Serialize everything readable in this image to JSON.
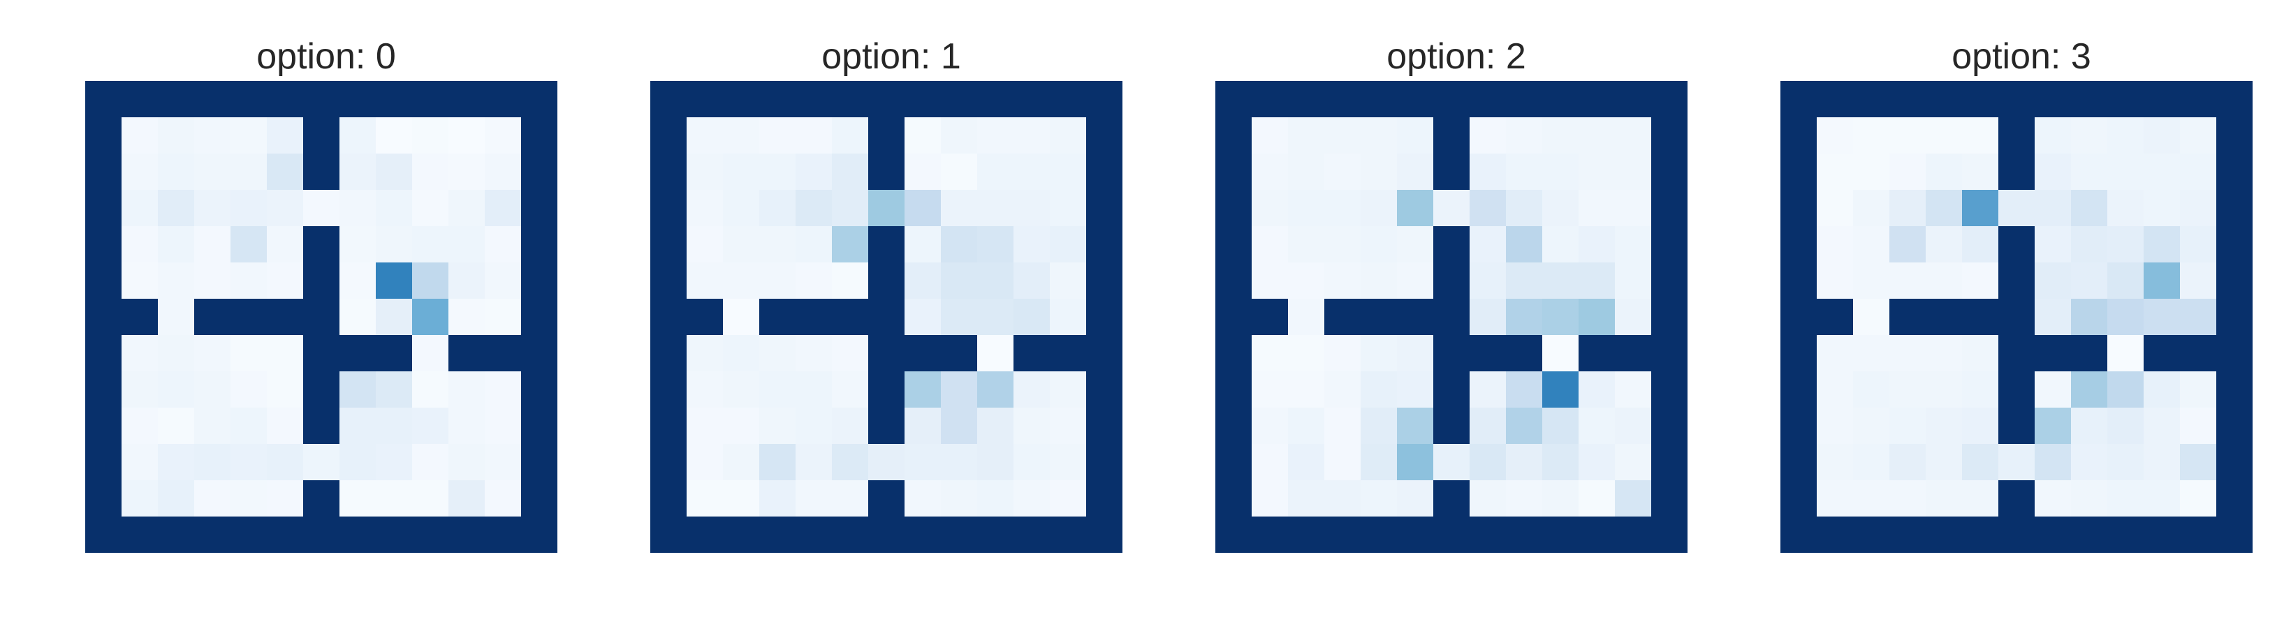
{
  "colors": {
    "wall": "#08306b",
    "cmap_low": "#f7fbff",
    "cmap_mid": "#6baed6",
    "cmap_high": "#08306b"
  },
  "chart_data": [
    {
      "type": "heatmap",
      "title": "option: 0",
      "rows": 13,
      "cols": 13,
      "vmax": 1.0,
      "values": [
        [
          -1,
          -1,
          -1,
          -1,
          -1,
          -1,
          -1,
          -1,
          -1,
          -1,
          -1,
          -1,
          -1
        ],
        [
          -1,
          0.04,
          0.08,
          0.06,
          0.05,
          0.14,
          -1,
          0.1,
          0.0,
          0.02,
          0.0,
          0.03,
          -1
        ],
        [
          -1,
          0.06,
          0.1,
          0.08,
          0.08,
          0.28,
          -1,
          0.12,
          0.18,
          0.04,
          0.03,
          0.06,
          -1
        ],
        [
          -1,
          0.1,
          0.22,
          0.12,
          0.14,
          0.12,
          0.04,
          0.06,
          0.1,
          0.03,
          0.08,
          0.2,
          -1
        ],
        [
          -1,
          0.04,
          0.1,
          0.04,
          0.3,
          0.06,
          -1,
          0.05,
          0.08,
          0.1,
          0.1,
          0.04,
          -1
        ],
        [
          -1,
          0.03,
          0.06,
          0.04,
          0.06,
          0.04,
          -1,
          0.03,
          0.85,
          0.42,
          0.12,
          0.06,
          -1
        ],
        [
          -1,
          -1,
          0.06,
          -1,
          -1,
          -1,
          -1,
          0.02,
          0.18,
          0.7,
          0.03,
          0.02,
          -1
        ],
        [
          -1,
          0.06,
          0.08,
          0.06,
          0.02,
          0.02,
          -1,
          -1,
          -1,
          0.04,
          -1,
          -1,
          -1
        ],
        [
          -1,
          0.08,
          0.1,
          0.08,
          0.04,
          0.02,
          -1,
          0.32,
          0.26,
          0.02,
          0.06,
          0.04,
          -1
        ],
        [
          -1,
          0.04,
          0.02,
          0.08,
          0.1,
          0.04,
          -1,
          0.16,
          0.16,
          0.14,
          0.06,
          0.04,
          -1
        ],
        [
          -1,
          0.06,
          0.14,
          0.16,
          0.14,
          0.16,
          0.1,
          0.16,
          0.14,
          0.04,
          0.08,
          0.06,
          -1
        ],
        [
          -1,
          0.1,
          0.16,
          0.04,
          0.05,
          0.04,
          -1,
          0.02,
          0.02,
          0.02,
          0.18,
          0.04,
          -1
        ],
        [
          -1,
          -1,
          -1,
          -1,
          -1,
          -1,
          -1,
          -1,
          -1,
          -1,
          -1,
          -1,
          -1
        ]
      ]
    },
    {
      "type": "heatmap",
      "title": "option: 1",
      "rows": 13,
      "cols": 13,
      "vmax": 1.0,
      "values": [
        [
          -1,
          -1,
          -1,
          -1,
          -1,
          -1,
          -1,
          -1,
          -1,
          -1,
          -1,
          -1,
          -1
        ],
        [
          -1,
          0.06,
          0.06,
          0.04,
          0.04,
          0.1,
          -1,
          0.02,
          0.08,
          0.06,
          0.06,
          0.08,
          -1
        ],
        [
          -1,
          0.08,
          0.1,
          0.1,
          0.14,
          0.22,
          -1,
          0.04,
          0.02,
          0.1,
          0.1,
          0.1,
          -1
        ],
        [
          -1,
          0.06,
          0.1,
          0.16,
          0.26,
          0.22,
          0.55,
          0.4,
          0.12,
          0.12,
          0.12,
          0.1,
          -1
        ],
        [
          -1,
          0.04,
          0.08,
          0.08,
          0.1,
          0.5,
          -1,
          0.1,
          0.32,
          0.3,
          0.14,
          0.16,
          -1
        ],
        [
          -1,
          0.06,
          0.06,
          0.06,
          0.04,
          0.02,
          -1,
          0.2,
          0.28,
          0.28,
          0.2,
          0.08,
          -1
        ],
        [
          -1,
          -1,
          0.0,
          -1,
          -1,
          -1,
          -1,
          0.14,
          0.26,
          0.26,
          0.28,
          0.1,
          -1
        ],
        [
          -1,
          0.08,
          0.1,
          0.08,
          0.06,
          0.04,
          -1,
          -1,
          -1,
          0.0,
          -1,
          -1,
          -1
        ],
        [
          -1,
          0.06,
          0.08,
          0.1,
          0.1,
          0.06,
          -1,
          0.5,
          0.34,
          0.48,
          0.12,
          0.08,
          -1
        ],
        [
          -1,
          0.04,
          0.04,
          0.08,
          0.1,
          0.12,
          -1,
          0.18,
          0.34,
          0.18,
          0.08,
          0.06,
          -1
        ],
        [
          -1,
          0.04,
          0.08,
          0.3,
          0.12,
          0.26,
          0.18,
          0.16,
          0.16,
          0.18,
          0.1,
          0.08,
          -1
        ],
        [
          -1,
          0.02,
          0.02,
          0.14,
          0.06,
          0.06,
          -1,
          0.06,
          0.08,
          0.1,
          0.06,
          0.04,
          -1
        ],
        [
          -1,
          -1,
          -1,
          -1,
          -1,
          -1,
          -1,
          -1,
          -1,
          -1,
          -1,
          -1,
          -1
        ]
      ]
    },
    {
      "type": "heatmap",
      "title": "option: 2",
      "rows": 13,
      "cols": 13,
      "vmax": 1.0,
      "values": [
        [
          -1,
          -1,
          -1,
          -1,
          -1,
          -1,
          -1,
          -1,
          -1,
          -1,
          -1,
          -1,
          -1
        ],
        [
          -1,
          0.04,
          0.08,
          0.08,
          0.08,
          0.1,
          -1,
          0.04,
          0.06,
          0.08,
          0.08,
          0.08,
          -1
        ],
        [
          -1,
          0.06,
          0.08,
          0.06,
          0.08,
          0.12,
          -1,
          0.14,
          0.1,
          0.1,
          0.08,
          0.08,
          -1
        ],
        [
          -1,
          0.08,
          0.1,
          0.1,
          0.12,
          0.55,
          0.12,
          0.34,
          0.22,
          0.12,
          0.06,
          0.06,
          -1
        ],
        [
          -1,
          0.04,
          0.08,
          0.08,
          0.1,
          0.08,
          -1,
          0.14,
          0.44,
          0.1,
          0.14,
          0.1,
          -1
        ],
        [
          -1,
          0.04,
          0.04,
          0.06,
          0.08,
          0.06,
          -1,
          0.16,
          0.26,
          0.26,
          0.26,
          0.1,
          -1
        ],
        [
          -1,
          -1,
          0.06,
          -1,
          -1,
          -1,
          -1,
          0.22,
          0.48,
          0.5,
          0.55,
          0.12,
          -1
        ],
        [
          -1,
          0.02,
          0.02,
          0.04,
          0.1,
          0.12,
          -1,
          -1,
          -1,
          0.0,
          -1,
          -1,
          -1
        ],
        [
          -1,
          0.03,
          0.03,
          0.06,
          0.16,
          0.14,
          -1,
          0.12,
          0.38,
          0.85,
          0.14,
          0.06,
          -1
        ],
        [
          -1,
          0.06,
          0.1,
          0.04,
          0.22,
          0.5,
          -1,
          0.22,
          0.48,
          0.3,
          0.1,
          0.12,
          -1
        ],
        [
          -1,
          0.04,
          0.14,
          0.04,
          0.24,
          0.6,
          0.16,
          0.28,
          0.18,
          0.26,
          0.14,
          0.08,
          -1
        ],
        [
          -1,
          0.04,
          0.12,
          0.12,
          0.1,
          0.12,
          -1,
          0.08,
          0.06,
          0.08,
          0.02,
          0.3,
          -1
        ],
        [
          -1,
          -1,
          -1,
          -1,
          -1,
          -1,
          -1,
          -1,
          -1,
          -1,
          -1,
          -1,
          -1
        ]
      ]
    },
    {
      "type": "heatmap",
      "title": "option: 3",
      "rows": 13,
      "cols": 13,
      "vmax": 1.0,
      "values": [
        [
          -1,
          -1,
          -1,
          -1,
          -1,
          -1,
          -1,
          -1,
          -1,
          -1,
          -1,
          -1,
          -1
        ],
        [
          -1,
          0.03,
          0.02,
          0.02,
          0.02,
          0.02,
          -1,
          0.1,
          0.08,
          0.1,
          0.12,
          0.08,
          -1
        ],
        [
          -1,
          0.02,
          0.02,
          0.04,
          0.1,
          0.08,
          -1,
          0.14,
          0.1,
          0.1,
          0.1,
          0.1,
          -1
        ],
        [
          -1,
          0.02,
          0.08,
          0.18,
          0.32,
          0.75,
          0.2,
          0.2,
          0.32,
          0.12,
          0.1,
          0.12,
          -1
        ],
        [
          -1,
          0.04,
          0.06,
          0.34,
          0.12,
          0.2,
          -1,
          0.14,
          0.22,
          0.2,
          0.32,
          0.16,
          -1
        ],
        [
          -1,
          0.04,
          0.06,
          0.06,
          0.06,
          0.04,
          -1,
          0.22,
          0.2,
          0.28,
          0.62,
          0.12,
          -1
        ],
        [
          -1,
          -1,
          0.02,
          -1,
          -1,
          -1,
          -1,
          0.2,
          0.45,
          0.4,
          0.36,
          0.36,
          -1
        ],
        [
          -1,
          0.06,
          0.06,
          0.06,
          0.06,
          0.08,
          -1,
          -1,
          -1,
          0.0,
          -1,
          -1,
          -1
        ],
        [
          -1,
          0.06,
          0.1,
          0.08,
          0.08,
          0.1,
          -1,
          0.06,
          0.52,
          0.42,
          0.16,
          0.08,
          -1
        ],
        [
          -1,
          0.06,
          0.08,
          0.1,
          0.12,
          0.14,
          -1,
          0.5,
          0.16,
          0.2,
          0.12,
          0.04,
          -1
        ],
        [
          -1,
          0.08,
          0.1,
          0.18,
          0.12,
          0.26,
          0.16,
          0.32,
          0.14,
          0.16,
          0.12,
          0.3,
          -1
        ],
        [
          -1,
          0.06,
          0.06,
          0.06,
          0.08,
          0.08,
          -1,
          0.06,
          0.08,
          0.1,
          0.1,
          0.02,
          -1
        ],
        [
          -1,
          -1,
          -1,
          -1,
          -1,
          -1,
          -1,
          -1,
          -1,
          -1,
          -1,
          -1,
          -1
        ]
      ]
    }
  ]
}
